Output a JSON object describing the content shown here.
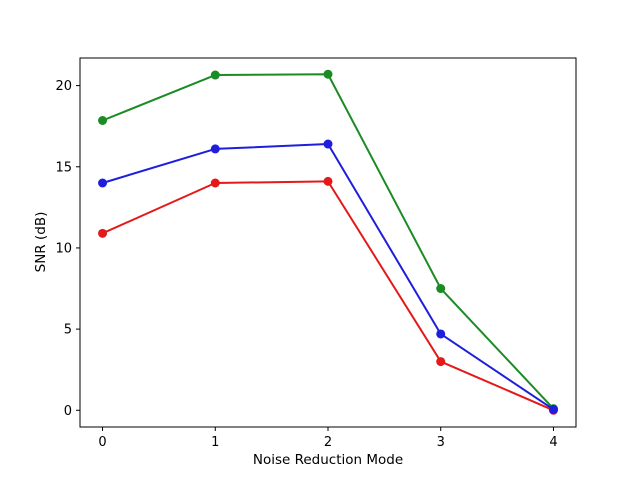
{
  "figure": {
    "background": "#ffffff",
    "frame_color": "#000000",
    "tick_color": "#000000",
    "text_color": "#000000"
  },
  "chart_data": {
    "type": "line",
    "xlabel": "Noise Reduction Mode",
    "ylabel": "SNR (dB)",
    "x": [
      0,
      1,
      2,
      3,
      4
    ],
    "xticks": [
      0,
      1,
      2,
      3,
      4
    ],
    "yticks": [
      0,
      5,
      10,
      15,
      20
    ],
    "xlim": [
      -0.2,
      4.2
    ],
    "ylim": [
      -1.03,
      21.7
    ],
    "grid": false,
    "legend": "none",
    "marker": "circle",
    "line_width": 2,
    "marker_radius": 4.5,
    "series": [
      {
        "name": "red",
        "color": "#e41919",
        "values": [
          10.9,
          14.0,
          14.1,
          3.0,
          0.0
        ]
      },
      {
        "name": "green",
        "color": "#1b8b24",
        "values": [
          17.85,
          20.65,
          20.7,
          7.5,
          0.1
        ]
      },
      {
        "name": "blue",
        "color": "#1e1edc",
        "values": [
          14.0,
          16.1,
          16.4,
          4.7,
          0.05
        ]
      }
    ]
  }
}
